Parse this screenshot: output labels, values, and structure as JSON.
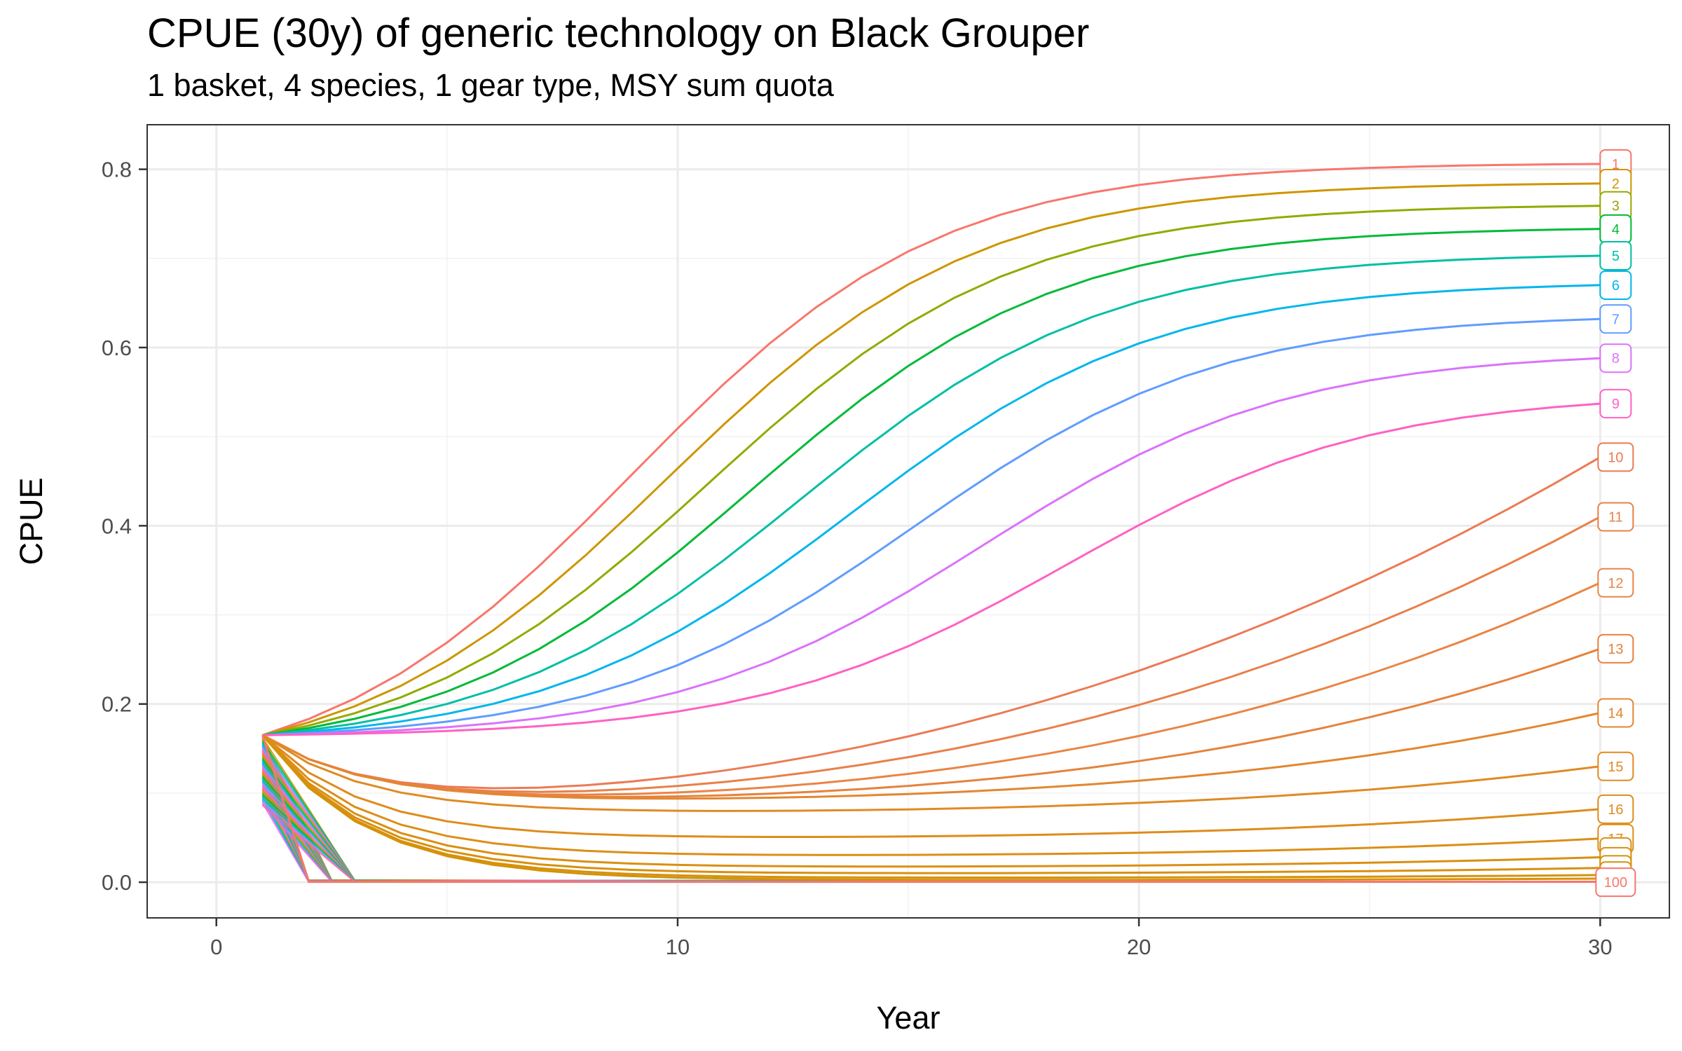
{
  "chart_data": {
    "type": "line",
    "title": "CPUE (30y) of generic technology on Black Grouper",
    "subtitle": "1 basket, 4 species, 1 gear type, MSY sum quota",
    "xlabel": "Year",
    "ylabel": "CPUE",
    "xlim": [
      -1.5,
      31.5
    ],
    "ylim": [
      -0.04,
      0.85
    ],
    "x_ticks": [
      0,
      10,
      20,
      30
    ],
    "y_ticks": [
      0.0,
      0.2,
      0.4,
      0.6,
      0.8
    ],
    "x_tick_labels": [
      "0",
      "10",
      "20",
      "30"
    ],
    "y_tick_labels": [
      "0.0",
      "0.2",
      "0.4",
      "0.6",
      "0.8"
    ],
    "grid": true,
    "legend": "none (direct end labels)",
    "x": [
      1,
      2,
      3,
      4,
      5,
      6,
      7,
      8,
      9,
      10,
      11,
      12,
      13,
      14,
      15,
      16,
      17,
      18,
      19,
      20,
      21,
      22,
      23,
      24,
      25,
      26,
      27,
      28,
      29,
      30
    ],
    "labeled_series": [
      {
        "label": "1",
        "color": "#F8766D",
        "end": 0.806,
        "x_label": 10,
        "y_label": 0.46
      },
      {
        "label": "2",
        "color": "#CD9600",
        "end": 0.784,
        "x_label": 10,
        "y_label": 0.43
      },
      {
        "label": "3",
        "color": "#93AA00",
        "end": 0.759,
        "x_label": 10,
        "y_label": 0.39
      },
      {
        "label": "4",
        "color": "#00BA38",
        "end": 0.733,
        "x_label": 10,
        "y_label": 0.355
      },
      {
        "label": "5",
        "color": "#00BFA4",
        "end": 0.703,
        "x_label": 10,
        "y_label": 0.32
      },
      {
        "label": "6",
        "color": "#00B6EB",
        "end": 0.67,
        "x_label": 10,
        "y_label": 0.285
      },
      {
        "label": "7",
        "color": "#619CFF",
        "end": 0.632,
        "x_label": 10,
        "y_label": 0.255
      },
      {
        "label": "8",
        "color": "#DB72FB",
        "end": 0.588,
        "x_label": 10,
        "y_label": 0.225
      },
      {
        "label": "9",
        "color": "#FF61C3",
        "end": 0.537,
        "x_label": 10,
        "y_label": 0.195
      },
      {
        "label": "10",
        "color": "#EC7A54",
        "end": 0.477,
        "x_label": 10,
        "y_label": 0.165
      },
      {
        "label": "11",
        "color": "#E8804A",
        "end": 0.41,
        "x_label": 10,
        "y_label": 0.14
      },
      {
        "label": "12",
        "color": "#E98545",
        "end": 0.336,
        "x_label": 10,
        "y_label": 0.12
      },
      {
        "label": "13",
        "color": "#E5823C",
        "end": 0.262,
        "x_label": 10,
        "y_label": 0.1
      },
      {
        "label": "14",
        "color": "#E38630",
        "end": 0.19,
        "x_label": 10,
        "y_label": 0.08
      },
      {
        "label": "15",
        "color": "#E08A24",
        "end": 0.13,
        "x_label": 10,
        "y_label": 0.065
      },
      {
        "label": "16",
        "color": "#DE8C1C",
        "end": 0.082,
        "x_label": 10,
        "y_label": 0.05
      },
      {
        "label": "17",
        "color": "#DC8E16",
        "end": 0.049,
        "x_label": 10,
        "y_label": 0.035
      },
      {
        "label": "",
        "color": "#DA8F12",
        "end": 0.028,
        "x_label": 10,
        "y_label": 0.022
      },
      {
        "label": "",
        "color": "#D8900E",
        "end": 0.016,
        "x_label": 10,
        "y_label": 0.013
      },
      {
        "label": "",
        "color": "#D6910C",
        "end": 0.008,
        "x_label": 10,
        "y_label": 0.007
      },
      {
        "label": "",
        "color": "#D4920A",
        "end": 0.004,
        "x_label": 10,
        "y_label": 0.003
      },
      {
        "label": "100",
        "color": "#F8766D",
        "end": 0.0,
        "x_label": 10,
        "y_label": 0.0
      }
    ],
    "start_value": 0.165,
    "label_positions_y": [
      0.806,
      0.784,
      0.759,
      0.733,
      0.703,
      0.67,
      0.632,
      0.588,
      0.537,
      0.477,
      0.41,
      0.336,
      0.262,
      0.19,
      0.13,
      0.082,
      0.049,
      0.034,
      0.023,
      0.014,
      0.007,
      0.0
    ]
  }
}
